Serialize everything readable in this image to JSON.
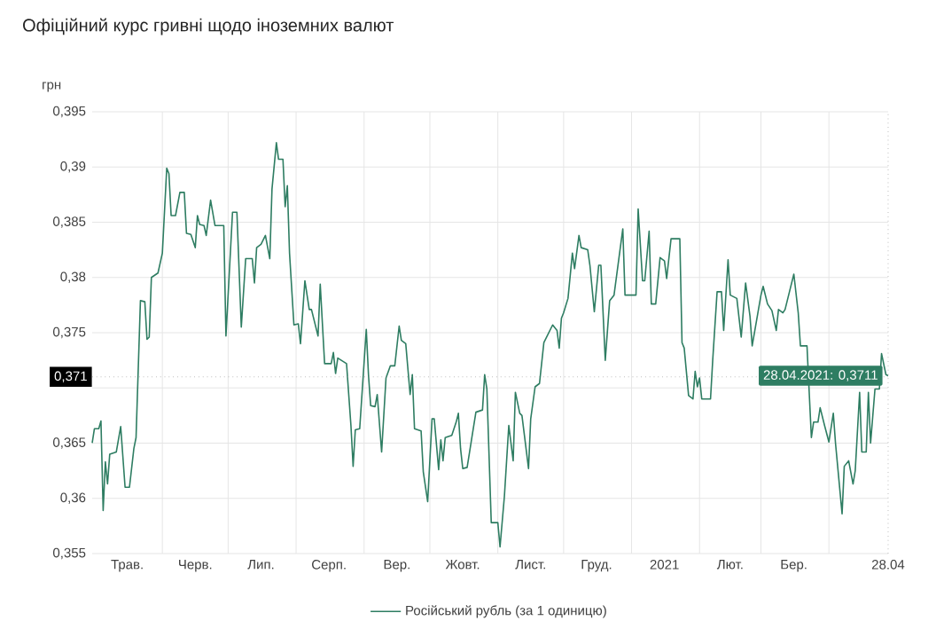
{
  "chart_data": {
    "type": "line",
    "title": "Офіційний курс гривні щодо іноземних валют",
    "ylabel": "грн",
    "x": [
      "2020-04-30",
      "2020-05-01",
      "2020-05-03",
      "2020-05-04",
      "2020-05-05",
      "2020-05-06",
      "2020-05-07",
      "2020-05-08",
      "2020-05-11",
      "2020-05-13",
      "2020-05-15",
      "2020-05-17",
      "2020-05-19",
      "2020-05-20",
      "2020-05-22",
      "2020-05-24",
      "2020-05-25",
      "2020-05-26",
      "2020-05-27",
      "2020-05-30",
      "2020-06-01",
      "2020-06-03",
      "2020-06-04",
      "2020-06-05",
      "2020-06-07",
      "2020-06-09",
      "2020-06-11",
      "2020-06-12",
      "2020-06-14",
      "2020-06-16",
      "2020-06-17",
      "2020-06-18",
      "2020-06-20",
      "2020-06-21",
      "2020-06-23",
      "2020-06-25",
      "2020-06-29",
      "2020-06-30",
      "2020-07-03",
      "2020-07-05",
      "2020-07-07",
      "2020-07-09",
      "2020-07-12",
      "2020-07-13",
      "2020-07-14",
      "2020-07-16",
      "2020-07-18",
      "2020-07-20",
      "2020-07-21",
      "2020-07-23",
      "2020-07-24",
      "2020-07-26",
      "2020-07-27",
      "2020-07-28",
      "2020-07-29",
      "2020-07-31",
      "2020-08-02",
      "2020-08-03",
      "2020-08-05",
      "2020-08-07",
      "2020-08-08",
      "2020-08-11",
      "2020-08-12",
      "2020-08-14",
      "2020-08-17",
      "2020-08-18",
      "2020-08-19",
      "2020-08-20",
      "2020-08-24",
      "2020-08-26",
      "2020-08-27",
      "2020-08-28",
      "2020-08-30",
      "2020-09-02",
      "2020-09-03",
      "2020-09-04",
      "2020-09-06",
      "2020-09-07",
      "2020-09-09",
      "2020-09-11",
      "2020-09-13",
      "2020-09-15",
      "2020-09-17",
      "2020-09-18",
      "2020-09-20",
      "2020-09-22",
      "2020-09-23",
      "2020-09-24",
      "2020-09-27",
      "2020-09-28",
      "2020-09-30",
      "2020-10-02",
      "2020-10-03",
      "2020-10-05",
      "2020-10-06",
      "2020-10-07",
      "2020-10-08",
      "2020-10-11",
      "2020-10-13",
      "2020-10-14",
      "2020-10-15",
      "2020-10-16",
      "2020-10-18",
      "2020-10-20",
      "2020-10-22",
      "2020-10-25",
      "2020-10-26",
      "2020-10-27",
      "2020-10-29",
      "2020-11-01",
      "2020-11-02",
      "2020-11-04",
      "2020-11-06",
      "2020-11-08",
      "2020-11-09",
      "2020-11-11",
      "2020-11-12",
      "2020-11-15",
      "2020-11-16",
      "2020-11-18",
      "2020-11-20",
      "2020-11-22",
      "2020-11-26",
      "2020-11-28",
      "2020-11-29",
      "2020-11-30",
      "2020-12-01",
      "2020-12-03",
      "2020-12-05",
      "2020-12-06",
      "2020-12-08",
      "2020-12-09",
      "2020-12-12",
      "2020-12-13",
      "2020-12-15",
      "2020-12-17",
      "2020-12-18",
      "2020-12-20",
      "2020-12-22",
      "2020-12-24",
      "2020-12-28",
      "2020-12-29",
      "2021-01-03",
      "2021-01-04",
      "2021-01-06",
      "2021-01-07",
      "2021-01-09",
      "2021-01-10",
      "2021-01-12",
      "2021-01-14",
      "2021-01-16",
      "2021-01-17",
      "2021-01-19",
      "2021-01-23",
      "2021-01-24",
      "2021-01-25",
      "2021-01-27",
      "2021-01-29",
      "2021-01-30",
      "2021-01-31",
      "2021-02-01",
      "2021-02-02",
      "2021-02-06",
      "2021-02-07",
      "2021-02-09",
      "2021-02-11",
      "2021-02-12",
      "2021-02-14",
      "2021-02-15",
      "2021-02-18",
      "2021-02-20",
      "2021-02-22",
      "2021-02-24",
      "2021-02-25",
      "2021-03-01",
      "2021-03-02",
      "2021-03-04",
      "2021-03-06",
      "2021-03-08",
      "2021-03-09",
      "2021-03-11",
      "2021-03-12",
      "2021-03-14",
      "2021-03-16",
      "2021-03-18",
      "2021-03-19",
      "2021-03-22",
      "2021-03-24",
      "2021-03-25",
      "2021-03-27",
      "2021-03-28",
      "2021-03-30",
      "2021-04-01",
      "2021-04-03",
      "2021-04-04",
      "2021-04-07",
      "2021-04-08",
      "2021-04-10",
      "2021-04-12",
      "2021-04-13",
      "2021-04-15",
      "2021-04-16",
      "2021-04-18",
      "2021-04-19",
      "2021-04-20",
      "2021-04-22",
      "2021-04-24",
      "2021-04-25",
      "2021-04-27",
      "2021-04-28"
    ],
    "series": [
      {
        "name": "Російський рубль (за 1 одиницю)",
        "color": "#2e7d62",
        "values": [
          0.365,
          0.3663,
          0.3663,
          0.367,
          0.3589,
          0.3633,
          0.3613,
          0.364,
          0.3642,
          0.3665,
          0.361,
          0.361,
          0.3645,
          0.3655,
          0.3779,
          0.3778,
          0.3744,
          0.3746,
          0.38,
          0.3804,
          0.3822,
          0.3899,
          0.3894,
          0.3856,
          0.3856,
          0.3877,
          0.3877,
          0.384,
          0.3839,
          0.3827,
          0.3856,
          0.3848,
          0.3847,
          0.3838,
          0.387,
          0.3847,
          0.3847,
          0.3747,
          0.3859,
          0.3859,
          0.3755,
          0.3817,
          0.3817,
          0.3795,
          0.3827,
          0.383,
          0.3838,
          0.3817,
          0.388,
          0.3922,
          0.3907,
          0.3907,
          0.3864,
          0.3883,
          0.3822,
          0.3757,
          0.3758,
          0.374,
          0.3797,
          0.3771,
          0.3771,
          0.3747,
          0.3794,
          0.3722,
          0.3722,
          0.3732,
          0.3713,
          0.3727,
          0.3722,
          0.3666,
          0.3629,
          0.3662,
          0.3663,
          0.3753,
          0.3712,
          0.3684,
          0.3683,
          0.3694,
          0.3642,
          0.3709,
          0.372,
          0.372,
          0.3756,
          0.3743,
          0.374,
          0.3694,
          0.3712,
          0.3663,
          0.3661,
          0.3624,
          0.3597,
          0.3672,
          0.3672,
          0.3626,
          0.3653,
          0.3634,
          0.3655,
          0.3657,
          0.3669,
          0.3677,
          0.3645,
          0.3627,
          0.3628,
          0.3653,
          0.3678,
          0.368,
          0.3712,
          0.3699,
          0.3578,
          0.3578,
          0.3556,
          0.3602,
          0.3666,
          0.3634,
          0.3696,
          0.3677,
          0.3675,
          0.3627,
          0.3672,
          0.3701,
          0.3704,
          0.3741,
          0.3757,
          0.3752,
          0.3736,
          0.3763,
          0.3768,
          0.3781,
          0.3822,
          0.3808,
          0.3838,
          0.3827,
          0.3825,
          0.3811,
          0.3769,
          0.3811,
          0.3811,
          0.3725,
          0.3779,
          0.3784,
          0.3844,
          0.3784,
          0.3784,
          0.3862,
          0.3797,
          0.3797,
          0.3842,
          0.3776,
          0.3776,
          0.3818,
          0.3815,
          0.3799,
          0.3835,
          0.3835,
          0.3741,
          0.3736,
          0.3693,
          0.369,
          0.3715,
          0.3701,
          0.3709,
          0.369,
          0.369,
          0.3725,
          0.3787,
          0.3787,
          0.3752,
          0.3816,
          0.3784,
          0.3781,
          0.3746,
          0.3795,
          0.3765,
          0.3738,
          0.3784,
          0.3792,
          0.3776,
          0.377,
          0.3752,
          0.3771,
          0.3768,
          0.3771,
          0.3787,
          0.3803,
          0.3768,
          0.3738,
          0.3738,
          0.3655,
          0.3669,
          0.3669,
          0.3682,
          0.3666,
          0.3651,
          0.3677,
          0.365,
          0.3586,
          0.3629,
          0.3634,
          0.3613,
          0.3625,
          0.3696,
          0.3642,
          0.3642,
          0.3696,
          0.365,
          0.3699,
          0.3699,
          0.3731,
          0.3712,
          0.3711
        ]
      }
    ],
    "xlim": [
      "2020-04-30",
      "2021-04-28"
    ],
    "xticks": [
      {
        "value": "2020-05-16",
        "label": "Трав."
      },
      {
        "value": "2020-06-16",
        "label": "Черв."
      },
      {
        "value": "2020-07-16",
        "label": "Лип."
      },
      {
        "value": "2020-08-16",
        "label": "Серп."
      },
      {
        "value": "2020-09-16",
        "label": "Вер."
      },
      {
        "value": "2020-10-16",
        "label": "Жовт."
      },
      {
        "value": "2020-11-16",
        "label": "Лист."
      },
      {
        "value": "2020-12-16",
        "label": "Груд."
      },
      {
        "value": "2021-01-16",
        "label": "2021"
      },
      {
        "value": "2021-02-15",
        "label": "Лют."
      },
      {
        "value": "2021-03-16",
        "label": "Бер."
      },
      {
        "value": "2021-04-28",
        "label": "28.04"
      },
      {
        "value": "2020-06-01",
        "label": null
      },
      {
        "value": "2020-07-01",
        "label": null
      },
      {
        "value": "2020-08-01",
        "label": null
      },
      {
        "value": "2020-09-01",
        "label": null
      },
      {
        "value": "2020-10-01",
        "label": null
      },
      {
        "value": "2020-11-01",
        "label": null
      },
      {
        "value": "2020-12-01",
        "label": null
      },
      {
        "value": "2021-01-01",
        "label": null
      },
      {
        "value": "2021-02-01",
        "label": null
      },
      {
        "value": "2021-03-01",
        "label": null
      },
      {
        "value": "2021-04-01",
        "label": null
      }
    ],
    "ylim": [
      0.355,
      0.395
    ],
    "yticks": [
      {
        "value": 0.355,
        "label": "0,355"
      },
      {
        "value": 0.36,
        "label": "0,36"
      },
      {
        "value": 0.365,
        "label": "0,365"
      },
      {
        "value": 0.37,
        "label": null
      },
      {
        "value": 0.375,
        "label": "0,375"
      },
      {
        "value": 0.38,
        "label": "0,38"
      },
      {
        "value": 0.385,
        "label": "0,385"
      },
      {
        "value": 0.39,
        "label": "0,39"
      },
      {
        "value": 0.395,
        "label": "0,395"
      }
    ],
    "ref_lines": [
      {
        "axis": "y",
        "value": 0.371,
        "label": "0,371",
        "line_style": "dotted"
      },
      {
        "axis": "x",
        "value": "2021-04-28",
        "line_style": "dotted"
      }
    ],
    "annotations": [
      {
        "text": "28.04.2021: 0,3711",
        "x": "2021-04-28",
        "y": 0.3711
      }
    ],
    "grid": true,
    "legend": "bottom",
    "line_style": "solid"
  }
}
